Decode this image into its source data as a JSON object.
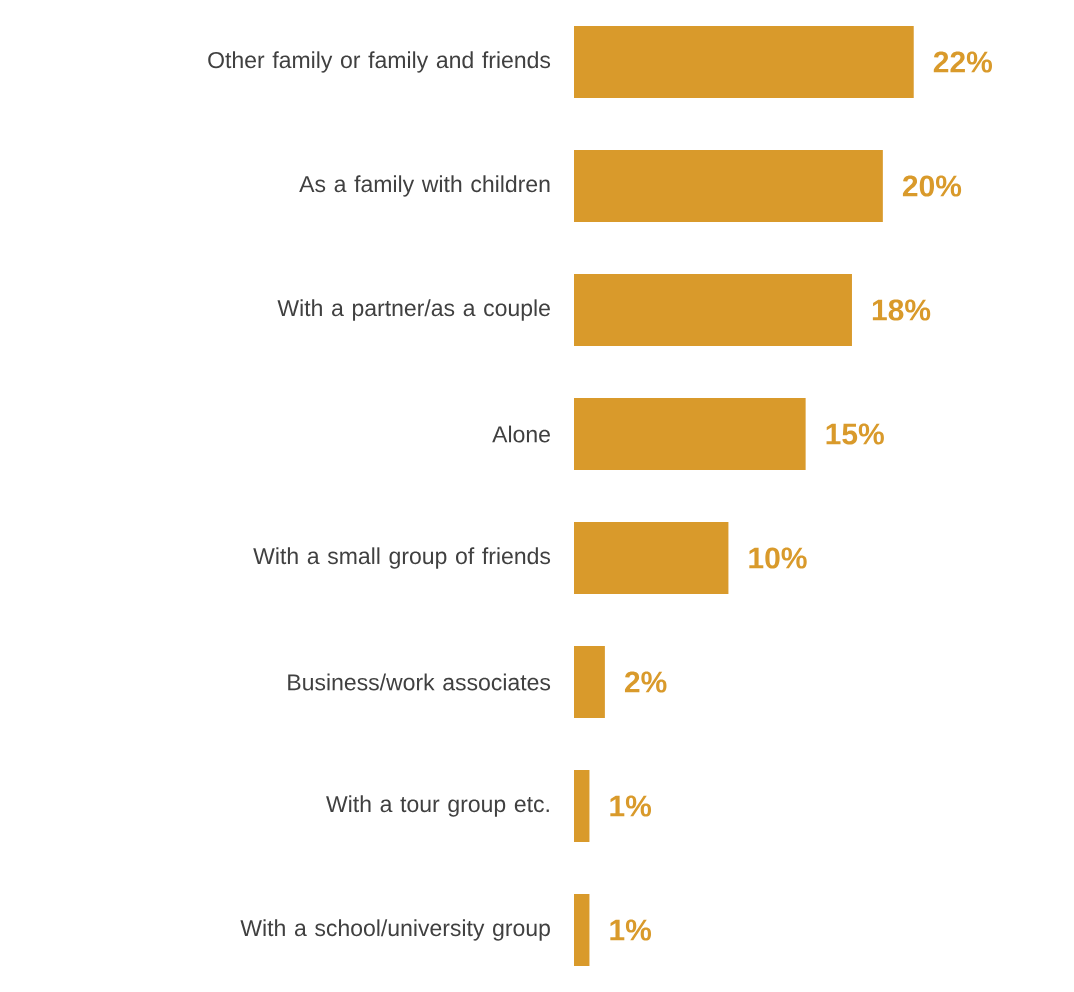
{
  "chart_data": {
    "type": "bar",
    "orientation": "horizontal",
    "categories": [
      "Other family or family and friends",
      "As a family with children",
      "With a partner/as a couple",
      "Alone",
      "With a small group of friends",
      "Business/work associates",
      "With a tour group etc.",
      "With a school/university group"
    ],
    "values": [
      22,
      20,
      18,
      15,
      10,
      2,
      1,
      1
    ],
    "value_labels": [
      "22%",
      "20%",
      "18%",
      "15%",
      "10%",
      "2%",
      "1%",
      "1%"
    ],
    "color": "#d99a2b"
  }
}
